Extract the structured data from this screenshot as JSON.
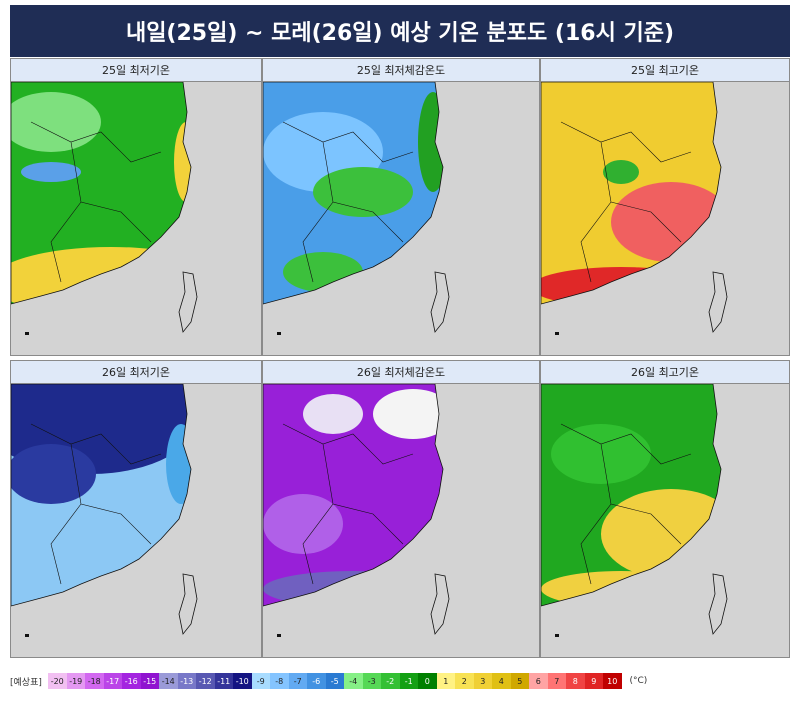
{
  "header": {
    "title": "내일(25일) ~ 모레(26일) 예상 기온 분포도 (16시 기준)"
  },
  "panels": [
    {
      "label": "25일 최저기온"
    },
    {
      "label": "25일 최저체감온도"
    },
    {
      "label": "25일 최고기온"
    },
    {
      "label": "26일 최저기온"
    },
    {
      "label": "26일 최저체감온도"
    },
    {
      "label": "26일 최고기온"
    }
  ],
  "legend": {
    "label": "[예상표]",
    "values": [
      -20,
      -19,
      -18,
      -17,
      -16,
      -15,
      -14,
      -13,
      -12,
      -11,
      -10,
      -9,
      -8,
      -7,
      -6,
      -5,
      -4,
      -3,
      -2,
      -1,
      0,
      1,
      2,
      3,
      4,
      5,
      6,
      7,
      8,
      9,
      10
    ],
    "colors": [
      "#f2c0f2",
      "#e498f2",
      "#d268f0",
      "#bb44e8",
      "#a424e0",
      "#9014d0",
      "#9a9ad8",
      "#7878c8",
      "#5858b2",
      "#34349a",
      "#141482",
      "#a8dcff",
      "#84c4ff",
      "#62aaf2",
      "#4292e2",
      "#2a7ad2",
      "#86f086",
      "#56d856",
      "#34c034",
      "#14a014",
      "#008000",
      "#fff284",
      "#f8e254",
      "#f0d034",
      "#e0c014",
      "#d0a800",
      "#ffa4a4",
      "#ff7474",
      "#f04444",
      "#e02424",
      "#c00000"
    ],
    "unit": "(°C)"
  }
}
